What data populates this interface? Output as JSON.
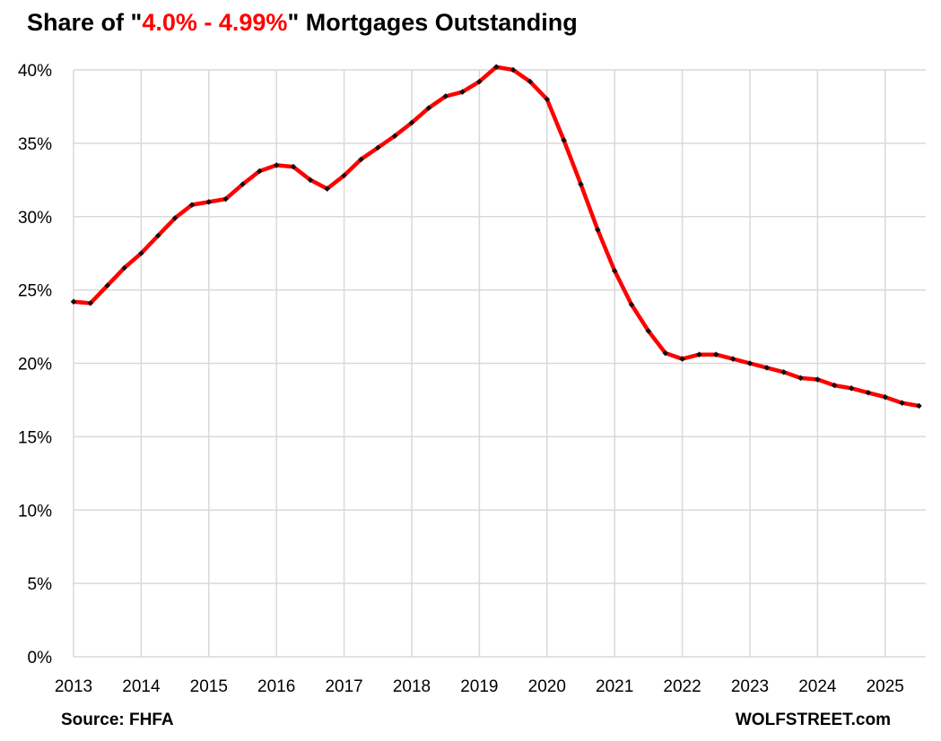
{
  "title": {
    "prefix": "Share of \"",
    "highlight": "4.0% - 4.99%",
    "suffix": "\" Mortgages Outstanding",
    "highlight_color": "#ff0000"
  },
  "source_label": "Source: FHFA",
  "brand_label": "WOLFSTREET.com",
  "colors": {
    "line": "#ff0000",
    "marker": "#111111",
    "grid": "#d9d9d9"
  },
  "chart_data": {
    "type": "line",
    "title": "Share of \"4.0% - 4.99%\" Mortgages Outstanding",
    "xlabel": "",
    "ylabel": "",
    "xlim": [
      2013.0,
      2025.6
    ],
    "ylim": [
      0,
      40
    ],
    "y_ticks": [
      "0%",
      "5%",
      "10%",
      "15%",
      "20%",
      "25%",
      "30%",
      "35%",
      "40%"
    ],
    "x_ticks": [
      "2013",
      "2014",
      "2015",
      "2016",
      "2017",
      "2018",
      "2019",
      "2020",
      "2021",
      "2022",
      "2023",
      "2024",
      "2025"
    ],
    "grid": true,
    "legend": "none",
    "series": [
      {
        "x": [
          2013.0,
          2013.25,
          2013.5,
          2013.75,
          2014.0,
          2014.25,
          2014.5,
          2014.75,
          2015.0,
          2015.25,
          2015.5,
          2015.75,
          2016.0,
          2016.25,
          2016.5,
          2016.75,
          2017.0,
          2017.25,
          2017.5,
          2017.75,
          2018.0,
          2018.25,
          2018.5,
          2018.75,
          2019.0,
          2019.25,
          2019.5,
          2019.75,
          2020.0,
          2020.25,
          2020.5,
          2020.75,
          2021.0,
          2021.25,
          2021.5,
          2021.75,
          2022.0,
          2022.25,
          2022.5,
          2022.75,
          2023.0,
          2023.25,
          2023.5,
          2023.75,
          2024.0,
          2024.25,
          2024.5,
          2024.75,
          2025.0,
          2025.25,
          2025.5
        ],
        "values": [
          24.2,
          24.1,
          25.3,
          26.5,
          27.5,
          28.7,
          29.9,
          30.8,
          31.0,
          31.2,
          32.2,
          33.1,
          33.5,
          33.4,
          32.5,
          31.9,
          32.8,
          33.9,
          34.7,
          35.5,
          36.4,
          37.4,
          38.2,
          38.5,
          39.2,
          40.2,
          40.0,
          39.2,
          38.0,
          35.2,
          32.2,
          29.1,
          26.3,
          24.0,
          22.2,
          20.7,
          20.3,
          20.6,
          20.6,
          20.3,
          20.0,
          19.7,
          19.4,
          19.0,
          18.9,
          18.5,
          18.3,
          18.0,
          17.7,
          17.3,
          17.1
        ]
      }
    ]
  }
}
